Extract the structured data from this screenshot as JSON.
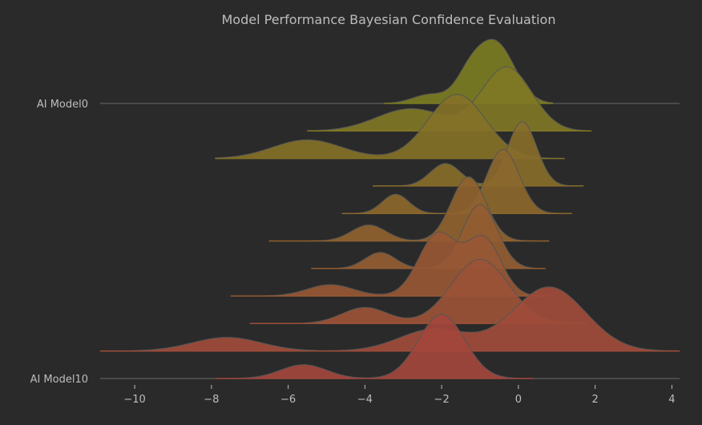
{
  "chart_data": {
    "type": "ridgeline",
    "title": "Model Performance Bayesian Confidence Evaluation",
    "xlabel": "",
    "ylabel": "",
    "xlim": [
      -10.9,
      4.2
    ],
    "x_ticks": [
      -10,
      -8,
      -6,
      -4,
      -2,
      0,
      2,
      4
    ],
    "x_tick_labels": [
      "−10",
      "−8",
      "−6",
      "−4",
      "−2",
      "0",
      "2",
      "4"
    ],
    "row_labels": [
      "AI Model0",
      "AI Model10"
    ],
    "grid": false,
    "legend": "none",
    "color_start": "#7b7c22",
    "color_end": "#a3473c",
    "series": [
      {
        "index": 0,
        "x_range": [
          -3.5,
          0.9
        ],
        "components": [
          [
            -2.3,
            0.45,
            0.15
          ],
          [
            -1.3,
            0.35,
            0.35
          ],
          [
            -0.6,
            0.5,
            1.0
          ]
        ]
      },
      {
        "index": 1,
        "x_range": [
          -5.5,
          1.9
        ],
        "components": [
          [
            -2.8,
            0.9,
            0.35
          ],
          [
            -0.3,
            0.65,
            1.0
          ]
        ]
      },
      {
        "index": 2,
        "x_range": [
          -7.9,
          1.2
        ],
        "components": [
          [
            -5.5,
            0.9,
            0.16
          ],
          [
            -1.6,
            0.75,
            0.55
          ]
        ]
      },
      {
        "index": 3,
        "x_range": [
          -3.8,
          1.7
        ],
        "components": [
          [
            -1.9,
            0.4,
            0.35
          ],
          [
            0.1,
            0.38,
            1.0
          ]
        ]
      },
      {
        "index": 4,
        "x_range": [
          -4.6,
          1.4
        ],
        "components": [
          [
            -3.2,
            0.35,
            0.3
          ],
          [
            -0.4,
            0.42,
            1.0
          ]
        ]
      },
      {
        "index": 5,
        "x_range": [
          -6.5,
          0.8
        ],
        "components": [
          [
            -3.9,
            0.45,
            0.25
          ],
          [
            -1.3,
            0.45,
            1.0
          ]
        ]
      },
      {
        "index": 6,
        "x_range": [
          -5.4,
          0.7
        ],
        "components": [
          [
            -3.6,
            0.4,
            0.25
          ],
          [
            -1.0,
            0.45,
            1.0
          ]
        ]
      },
      {
        "index": 7,
        "x_range": [
          -7.5,
          0.8
        ],
        "components": [
          [
            -4.9,
            0.6,
            0.1
          ],
          [
            -2.1,
            0.5,
            0.55
          ],
          [
            -0.9,
            0.45,
            0.5
          ]
        ]
      },
      {
        "index": 8,
        "x_range": [
          -7.0,
          1.8
        ],
        "components": [
          [
            -4.0,
            0.6,
            0.2
          ],
          [
            -1.0,
            0.75,
            0.8
          ]
        ]
      },
      {
        "index": 9,
        "x_range": [
          -10.9,
          4.2
        ],
        "components": [
          [
            -7.6,
            0.9,
            0.1
          ],
          [
            -2.2,
            0.9,
            0.16
          ],
          [
            0.8,
            0.95,
            0.47
          ]
        ]
      },
      {
        "index": 10,
        "x_range": [
          -7.9,
          0.4
        ],
        "components": [
          [
            -5.6,
            0.6,
            0.14
          ],
          [
            -2.0,
            0.6,
            0.65
          ]
        ]
      }
    ]
  }
}
